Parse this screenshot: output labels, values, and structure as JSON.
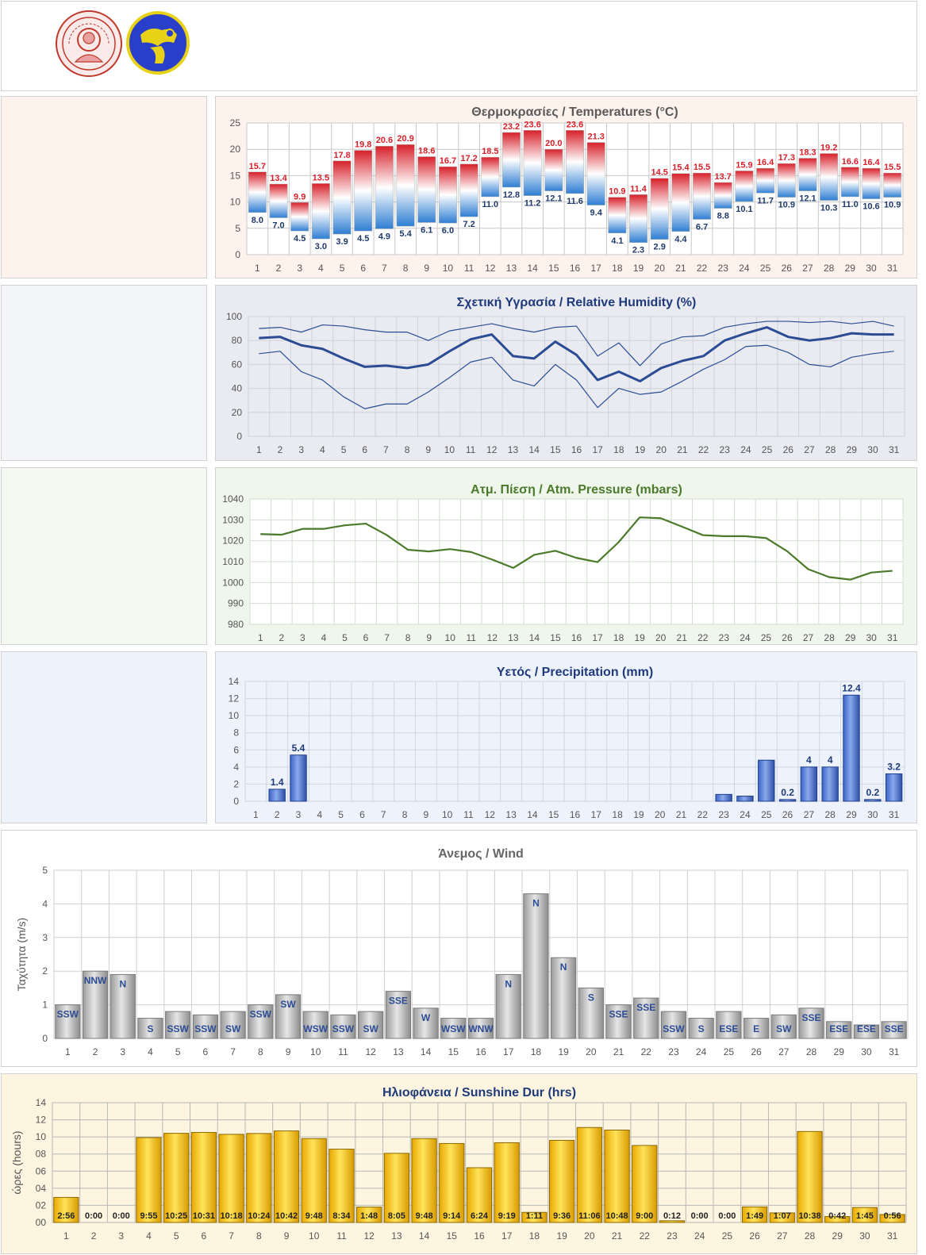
{
  "chart_data": [
    {
      "id": "temp",
      "type": "bar",
      "title": "Θερμοκρασίες / Temperatures (°C)",
      "categories": [
        "1",
        "2",
        "3",
        "4",
        "5",
        "6",
        "7",
        "8",
        "9",
        "10",
        "11",
        "12",
        "13",
        "14",
        "15",
        "16",
        "17",
        "18",
        "19",
        "20",
        "21",
        "22",
        "23",
        "24",
        "25",
        "26",
        "27",
        "28",
        "29",
        "30",
        "31"
      ],
      "series": [
        {
          "values": [
            15.7,
            13.4,
            9.9,
            13.5,
            17.8,
            19.8,
            20.6,
            20.9,
            18.6,
            16.7,
            17.2,
            18.5,
            23.2,
            23.6,
            20.0,
            23.6,
            21.3,
            10.9,
            11.4,
            14.5,
            15.4,
            15.5,
            13.7,
            15.9,
            16.4,
            17.3,
            18.3,
            19.2,
            16.6,
            16.4,
            15.5
          ]
        },
        {
          "values": [
            8.0,
            7.0,
            4.5,
            3.0,
            3.9,
            4.5,
            4.9,
            5.4,
            6.1,
            6.0,
            7.2,
            11.0,
            12.8,
            11.2,
            12.1,
            11.6,
            9.4,
            4.1,
            2.3,
            2.9,
            4.4,
            6.7,
            8.8,
            10.1,
            11.7,
            10.9,
            12.1,
            10.3,
            11.0,
            10.6,
            10.9
          ]
        }
      ],
      "ylim": [
        0,
        25
      ],
      "yticks": [
        "0",
        "5",
        "10",
        "15",
        "20",
        "25"
      ]
    },
    {
      "id": "hum",
      "type": "line",
      "title": "Σχετική Υγρασία / Relative Humidity (%)",
      "categories": [
        "1",
        "2",
        "3",
        "4",
        "5",
        "6",
        "7",
        "8",
        "9",
        "10",
        "11",
        "12",
        "13",
        "14",
        "15",
        "16",
        "17",
        "18",
        "19",
        "20",
        "21",
        "22",
        "23",
        "24",
        "25",
        "26",
        "27",
        "28",
        "29",
        "30",
        "31"
      ],
      "series": [
        {
          "values": [
            90,
            91,
            87,
            93,
            92,
            89,
            87,
            87,
            80,
            88,
            91,
            94,
            90,
            87,
            91,
            92,
            67,
            78,
            59,
            77,
            83,
            84,
            91,
            94,
            96,
            96,
            95,
            96,
            94,
            96,
            92
          ]
        },
        {
          "values": [
            82,
            83,
            76,
            73,
            65,
            58,
            59,
            57,
            60,
            71,
            81,
            85,
            67,
            65,
            79,
            68,
            47,
            54,
            46,
            57,
            63,
            67,
            80,
            86,
            91,
            83,
            80,
            82,
            86,
            85,
            85
          ]
        },
        {
          "values": [
            69,
            71,
            54,
            47,
            33,
            23,
            27,
            27,
            37,
            49,
            62,
            66,
            47,
            42,
            60,
            47,
            24,
            40,
            35,
            37,
            46,
            56,
            64,
            75,
            76,
            70,
            60,
            58,
            66,
            69,
            71
          ]
        }
      ],
      "ylim": [
        0,
        100
      ],
      "yticks": [
        "0",
        "20",
        "40",
        "60",
        "80",
        "100"
      ]
    },
    {
      "id": "pres",
      "type": "line",
      "title": "Ατμ. Πίεση / Atm. Pressure (mbars)",
      "categories": [
        "1",
        "2",
        "3",
        "4",
        "5",
        "6",
        "7",
        "8",
        "9",
        "10",
        "11",
        "12",
        "13",
        "14",
        "15",
        "16",
        "17",
        "18",
        "19",
        "20",
        "21",
        "22",
        "23",
        "24",
        "25",
        "26",
        "27",
        "28",
        "29",
        "30",
        "31"
      ],
      "series": [
        {
          "values": [
            1023.2,
            1022.9,
            1025.7,
            1025.7,
            1027.4,
            1028.2,
            1022.7,
            1015.7,
            1014.9,
            1016.0,
            1014.6,
            1011.0,
            1007.0,
            1013.3,
            1015.2,
            1011.8,
            1009.8,
            1019.3,
            1031.2,
            1030.8,
            1026.8,
            1022.7,
            1022.2,
            1022.2,
            1021.3,
            1015.0,
            1006.4,
            1002.6,
            1001.4,
            1004.8,
            1005.6
          ]
        }
      ],
      "ylim": [
        980,
        1040
      ],
      "yticks": [
        "980",
        "990",
        "1000",
        "1010",
        "1020",
        "1030",
        "1040"
      ]
    },
    {
      "id": "rain",
      "type": "bar",
      "title": "Υετός / Precipitation (mm)",
      "categories": [
        "1",
        "2",
        "3",
        "4",
        "5",
        "6",
        "7",
        "8",
        "9",
        "10",
        "11",
        "12",
        "13",
        "14",
        "15",
        "16",
        "17",
        "18",
        "19",
        "20",
        "21",
        "22",
        "23",
        "24",
        "25",
        "26",
        "27",
        "28",
        "29",
        "30",
        "31"
      ],
      "values": [
        0,
        1.4,
        5.4,
        0,
        0,
        0,
        0,
        0,
        0,
        0,
        0,
        0,
        0,
        0,
        0,
        0,
        0,
        0,
        0,
        0,
        0,
        0,
        0.8,
        0.6,
        4.8,
        0.2,
        4,
        4,
        12.4,
        0.2,
        3.2
      ],
      "labels": [
        "",
        "1.4",
        "5.4",
        "",
        "",
        "",
        "",
        "",
        "",
        "",
        "",
        "",
        "",
        "",
        "",
        "",
        "",
        "",
        "",
        "",
        "",
        "",
        "",
        "",
        "",
        "0.2",
        "4",
        "4",
        "12.4",
        "0.2",
        "3.2"
      ],
      "ylim": [
        0,
        14
      ],
      "yticks": [
        "0",
        "2",
        "4",
        "6",
        "8",
        "10",
        "12",
        "14"
      ]
    },
    {
      "id": "wind",
      "type": "bar",
      "title": "Άνεμος / Wind",
      "ylabel": "Ταχύτητα  (m/s)",
      "categories": [
        "1",
        "2",
        "3",
        "4",
        "5",
        "6",
        "7",
        "8",
        "9",
        "10",
        "11",
        "12",
        "13",
        "14",
        "15",
        "16",
        "17",
        "18",
        "19",
        "20",
        "21",
        "22",
        "23",
        "24",
        "25",
        "26",
        "27",
        "28",
        "29",
        "30",
        "31"
      ],
      "values": [
        1.0,
        2.0,
        1.9,
        0.6,
        0.8,
        0.7,
        0.8,
        1.0,
        1.3,
        0.8,
        0.7,
        0.8,
        1.4,
        0.9,
        0.6,
        0.6,
        1.9,
        4.3,
        2.4,
        1.5,
        1.0,
        1.2,
        0.8,
        0.6,
        0.8,
        0.6,
        0.7,
        0.9,
        0.5,
        0.4,
        0.5
      ],
      "labels": [
        "SSW",
        "NNW",
        "N",
        "S",
        "SSW",
        "SSW",
        "SW",
        "SSW",
        "SW",
        "WSW",
        "SSW",
        "SW",
        "SSE",
        "W",
        "WSW",
        "WNW",
        "N",
        "N",
        "N",
        "S",
        "SSE",
        "SSE",
        "SSW",
        "S",
        "ESE",
        "E",
        "SW",
        "SSE",
        "ESE",
        "ESE",
        "SSE"
      ],
      "ylim": [
        0,
        5
      ],
      "yticks": [
        "0",
        "1",
        "2",
        "3",
        "4",
        "5"
      ]
    },
    {
      "id": "sun",
      "type": "bar",
      "title": "Ηλιοφάνεια / Sunshine Dur (hrs)",
      "ylabel": "ώρες (hours)",
      "categories": [
        "1",
        "2",
        "3",
        "4",
        "5",
        "6",
        "7",
        "8",
        "9",
        "10",
        "11",
        "12",
        "13",
        "14",
        "15",
        "16",
        "17",
        "18",
        "19",
        "20",
        "21",
        "22",
        "23",
        "24",
        "25",
        "26",
        "27",
        "28",
        "29",
        "30",
        "31"
      ],
      "values": [
        2.93,
        0,
        0,
        9.92,
        10.42,
        10.52,
        10.3,
        10.4,
        10.7,
        9.8,
        8.57,
        1.8,
        8.08,
        9.8,
        9.23,
        6.4,
        9.32,
        1.18,
        9.6,
        11.1,
        10.8,
        9.0,
        0.2,
        0,
        0,
        1.82,
        1.12,
        10.63,
        0.7,
        1.75,
        0.93
      ],
      "labels": [
        "2:56",
        "0:00",
        "0:00",
        "9:55",
        "10:25",
        "10:31",
        "10:18",
        "10:24",
        "10:42",
        "9:48",
        "8:34",
        "1:48",
        "8:05",
        "9:48",
        "9:14",
        "6:24",
        "9:19",
        "1:11",
        "9:36",
        "11:06",
        "10:48",
        "9:00",
        "0:12",
        "0:00",
        "0:00",
        "1:49",
        "1:07",
        "10:38",
        "0:42",
        "1:45",
        "0:56"
      ],
      "ylim": [
        0,
        14
      ],
      "yticks": [
        "00",
        "02",
        "04",
        "06",
        "08",
        "10",
        "12",
        "14"
      ]
    }
  ]
}
